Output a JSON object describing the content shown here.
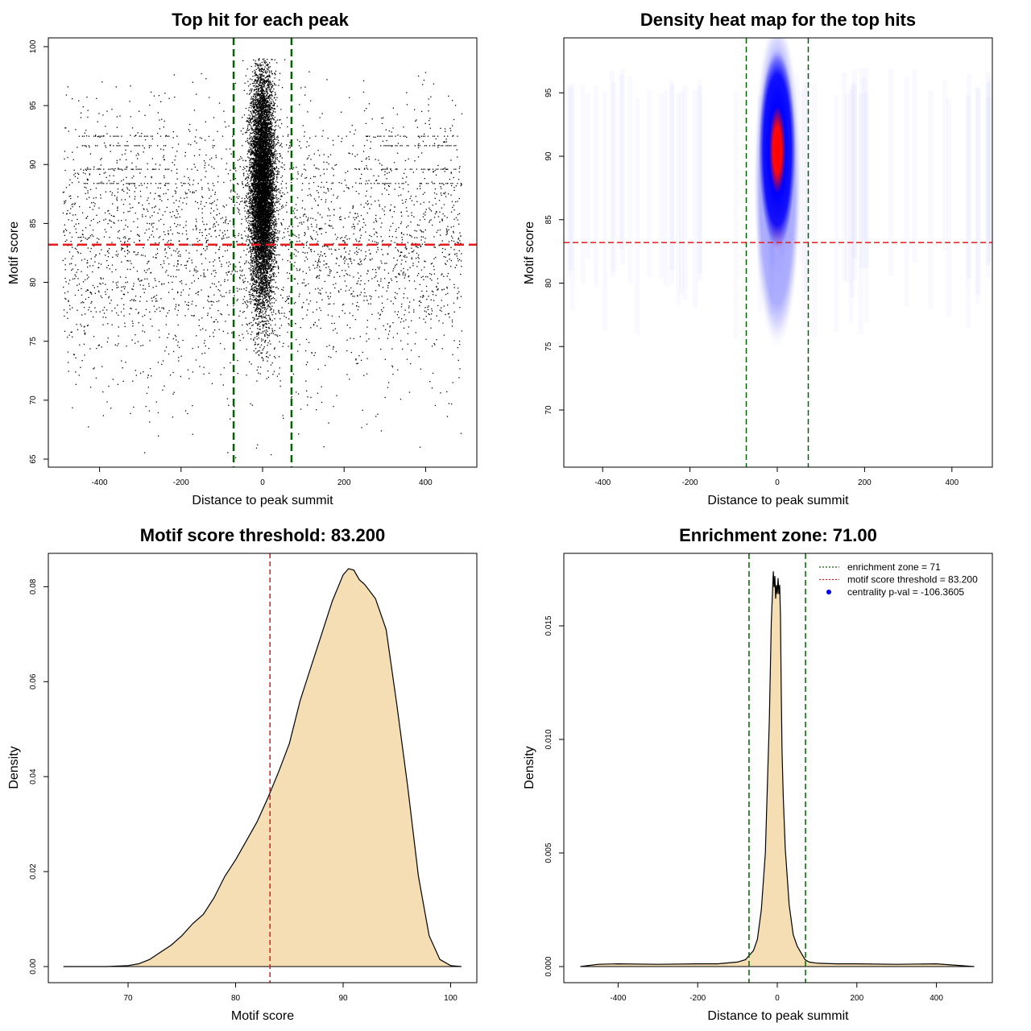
{
  "chart_data": [
    {
      "id": "scatter",
      "type": "scatter",
      "title": "Top hit for each peak",
      "xlabel": "Distance to peak summit",
      "ylabel": "Motif score",
      "xlim": [
        -500,
        500
      ],
      "ylim": [
        65,
        100
      ],
      "xticks": [
        -400,
        -200,
        0,
        200,
        400
      ],
      "yticks": [
        65,
        70,
        75,
        80,
        85,
        90,
        95,
        100
      ],
      "vlines": [
        -71,
        71
      ],
      "hline": 83.2,
      "colors": {
        "points": "#000000",
        "vlines": "#006400",
        "hline": "#e41a1c"
      },
      "distribution": {
        "central": {
          "x_center": 0,
          "x_sd": 15,
          "y_center": 88,
          "y_sd": 5,
          "y_range": [
            71,
            99
          ]
        },
        "background": {
          "x_range": [
            -490,
            490
          ],
          "y_center": 83,
          "y_sd": 6,
          "y_range": [
            65,
            98
          ]
        },
        "bands_y": [
          92.4,
          91.6,
          89.6,
          88.4
        ]
      }
    },
    {
      "id": "heatmap",
      "type": "heatmap",
      "title": "Density heat map for the top hits",
      "xlabel": "Distance to peak summit",
      "ylabel": "Motif score",
      "xlim": [
        -490,
        490
      ],
      "ylim": [
        66,
        99
      ],
      "xticks": [
        -400,
        -200,
        0,
        200,
        400
      ],
      "yticks": [
        70,
        75,
        80,
        85,
        90,
        95
      ],
      "vlines": [
        -71,
        71
      ],
      "hline": 83.2,
      "peak": {
        "x": 0,
        "y": 90.5
      },
      "colors": {
        "low": "#ffffff",
        "mid": "#0000ff",
        "high": "#ff0000",
        "vlines": "#006400",
        "hline": "#e41a1c"
      }
    },
    {
      "id": "score-density",
      "type": "area",
      "title": "Motif score threshold: 83.200",
      "xlabel": "Motif score",
      "ylabel": "Density",
      "xlim": [
        62,
        102
      ],
      "ylim": [
        0,
        0.084
      ],
      "xticks": [
        70,
        80,
        90,
        100
      ],
      "yticks": [
        0.0,
        0.02,
        0.04,
        0.06,
        0.08
      ],
      "ytick_labels": [
        "0.00",
        "0.02",
        "0.04",
        "0.06",
        "0.08"
      ],
      "vline": 83.2,
      "x": [
        64,
        68,
        70,
        71,
        72,
        73,
        74,
        75,
        76,
        77,
        78,
        79,
        80,
        81,
        82,
        83,
        84,
        85,
        86,
        87,
        88,
        89,
        90,
        90.5,
        91,
        91.5,
        92,
        93,
        94,
        95,
        96,
        97,
        98,
        99,
        100,
        101
      ],
      "y": [
        0.0,
        0.0,
        0.0002,
        0.0006,
        0.0015,
        0.003,
        0.0045,
        0.0065,
        0.009,
        0.011,
        0.0145,
        0.019,
        0.0225,
        0.0265,
        0.0305,
        0.0355,
        0.041,
        0.047,
        0.056,
        0.063,
        0.07,
        0.077,
        0.0825,
        0.0838,
        0.0835,
        0.0815,
        0.0805,
        0.0775,
        0.071,
        0.055,
        0.038,
        0.019,
        0.0065,
        0.0015,
        0.0002,
        0.0
      ],
      "colors": {
        "fill": "#f5deb3",
        "line": "#000000",
        "vline": "#e41a1c"
      }
    },
    {
      "id": "distance-density",
      "type": "area",
      "title": "Enrichment zone: 71.00",
      "xlabel": "Distance to peak summit",
      "ylabel": "Density",
      "xlim": [
        -500,
        540
      ],
      "ylim": [
        0,
        0.0177
      ],
      "xticks": [
        -400,
        -200,
        0,
        200,
        400
      ],
      "yticks": [
        0.0,
        0.005,
        0.01,
        0.015
      ],
      "ytick_labels": [
        "0.000",
        "0.005",
        "0.010",
        "0.015"
      ],
      "vlines": [
        -71,
        71
      ],
      "x": [
        -495,
        -450,
        -400,
        -300,
        -200,
        -150,
        -100,
        -80,
        -70,
        -60,
        -50,
        -40,
        -30,
        -20,
        -15,
        -10,
        -8,
        -6,
        -4,
        -2,
        0,
        2,
        4,
        6,
        8,
        10,
        12,
        15,
        20,
        30,
        40,
        50,
        60,
        70,
        80,
        100,
        150,
        200,
        300,
        400,
        495
      ],
      "y": [
        0.0,
        0.0001,
        0.00012,
        0.0001,
        0.00012,
        0.00012,
        0.0002,
        0.0003,
        0.0005,
        0.0007,
        0.0012,
        0.0025,
        0.005,
        0.0108,
        0.0152,
        0.0174,
        0.0167,
        0.0172,
        0.0162,
        0.0168,
        0.0164,
        0.0171,
        0.0164,
        0.0168,
        0.0154,
        0.0122,
        0.0095,
        0.0075,
        0.0052,
        0.0027,
        0.0014,
        0.0009,
        0.0006,
        0.0003,
        0.0002,
        0.00015,
        0.00012,
        0.00012,
        0.0001,
        0.00012,
        0.0
      ],
      "legend": [
        {
          "label": "enrichment zone = 71",
          "style": "dotted",
          "color": "#006400"
        },
        {
          "label": "motif score threshold = 83.200",
          "style": "dotted",
          "color": "#e41a1c"
        },
        {
          "label": "centrality p-val = -106.3605",
          "style": "point",
          "color": "#0000ff"
        }
      ],
      "colors": {
        "fill": "#f5deb3",
        "line": "#000000",
        "vlines": "#006400"
      }
    }
  ]
}
